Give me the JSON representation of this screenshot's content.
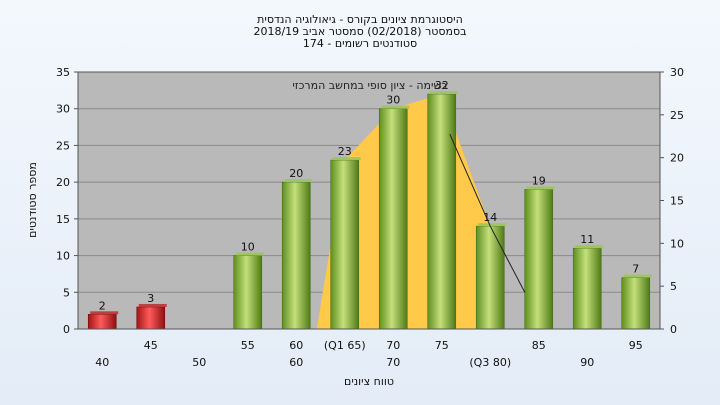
{
  "chart_data": {
    "type": "bar",
    "title_lines": [
      "היסטוגרמת ציונים בקורס - גיאולוגיה הנדסית",
      "בסמסטר  (02/2018)  סמסטר אביב 2018/19",
      "סטודנטים רשומים - 174"
    ],
    "xlabel": "טווח ציונים",
    "ylabel": "מספר סטודנטים",
    "annotation": "בשימה - ציון סופי במחשב המרכזי",
    "ylim_left": [
      0,
      35
    ],
    "yticks_left": [
      0,
      5,
      10,
      15,
      20,
      25,
      30,
      35
    ],
    "ylim_right": [
      0,
      30
    ],
    "yticks_right": [
      0,
      5,
      10,
      15,
      20,
      25,
      30
    ],
    "grid": true,
    "x_tick_labels_upper": [
      "45",
      "55",
      "60",
      "(Q1 65)",
      "70",
      "75",
      "85",
      "95"
    ],
    "x_tick_labels_lower": [
      "40",
      "50",
      "60",
      "70",
      "(Q3 80)",
      "90"
    ],
    "bars": [
      {
        "category": "40",
        "value": 2,
        "color": "red"
      },
      {
        "category": "45",
        "value": 3,
        "color": "red"
      },
      {
        "category": "50",
        "value": 0,
        "color": "green"
      },
      {
        "category": "55",
        "value": 10,
        "color": "green"
      },
      {
        "category": "60",
        "value": 20,
        "color": "green"
      },
      {
        "category": "65",
        "value": 23,
        "color": "green"
      },
      {
        "category": "70",
        "value": 30,
        "color": "green"
      },
      {
        "category": "75",
        "value": 32,
        "color": "green"
      },
      {
        "category": "80",
        "value": 14,
        "color": "green"
      },
      {
        "category": "85",
        "value": 19,
        "color": "green"
      },
      {
        "category": "90",
        "value": 11,
        "color": "green"
      },
      {
        "category": "95",
        "value": 7,
        "color": "green"
      }
    ],
    "quartile_area": {
      "categories": [
        "65",
        "70",
        "75",
        "80"
      ],
      "values": [
        23,
        30,
        32,
        14
      ],
      "color": "#ffc94a"
    },
    "colors": {
      "red": "#d0312d",
      "green": "#8fbf3f",
      "plot_bg": "#b9b9b9",
      "frame": "#555555"
    }
  }
}
